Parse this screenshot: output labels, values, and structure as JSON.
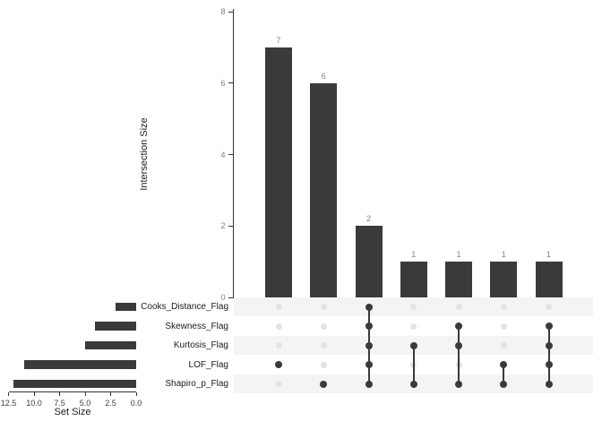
{
  "chart_data": {
    "type": "upset",
    "title": "",
    "intersection_axis": {
      "label": "Intersection Size",
      "ticks": [
        "0",
        "2",
        "4",
        "6",
        "8"
      ],
      "tick_values": [
        0,
        2,
        4,
        6,
        8
      ],
      "max": 8
    },
    "set_axis": {
      "label": "Set Size",
      "ticks": [
        "12.5",
        "10.0",
        "7.5",
        "5.0",
        "2.5",
        "0.0"
      ],
      "tick_values": [
        12.5,
        10.0,
        7.5,
        5.0,
        2.5,
        0.0
      ],
      "max": 12.5
    },
    "sets": [
      {
        "name": "Cooks_Distance_Flag",
        "size": 2
      },
      {
        "name": "Skewness_Flag",
        "size": 4
      },
      {
        "name": "Kurtosis_Flag",
        "size": 5
      },
      {
        "name": "LOF_Flag",
        "size": 11
      },
      {
        "name": "Shapiro_p_Flag",
        "size": 12
      }
    ],
    "intersections": [
      {
        "members": [
          "LOF_Flag"
        ],
        "size": 7,
        "label": "7"
      },
      {
        "members": [
          "Shapiro_p_Flag"
        ],
        "size": 6,
        "label": "6"
      },
      {
        "members": [
          "Cooks_Distance_Flag",
          "Skewness_Flag",
          "Kurtosis_Flag",
          "LOF_Flag",
          "Shapiro_p_Flag"
        ],
        "size": 2,
        "label": "2"
      },
      {
        "members": [
          "Kurtosis_Flag",
          "Shapiro_p_Flag"
        ],
        "size": 1,
        "label": "1"
      },
      {
        "members": [
          "Skewness_Flag",
          "Kurtosis_Flag",
          "Shapiro_p_Flag"
        ],
        "size": 1,
        "label": "1"
      },
      {
        "members": [
          "LOF_Flag",
          "Shapiro_p_Flag"
        ],
        "size": 1,
        "label": "1"
      },
      {
        "members": [
          "Skewness_Flag",
          "Kurtosis_Flag",
          "LOF_Flag",
          "Shapiro_p_Flag"
        ],
        "size": 1,
        "label": "1"
      }
    ],
    "colors": {
      "bar": "#3a3a3a",
      "dot_active": "#3a3a3a",
      "dot_inactive": "#e3e3e3",
      "stripe": "#f4f4f4",
      "value_label": "#848484",
      "y_tick_label": "#7f7f7f",
      "set_tick_label": "#404040",
      "axis_line": "#333333",
      "text": "#1a1a1a",
      "background": "#ffffff"
    }
  }
}
